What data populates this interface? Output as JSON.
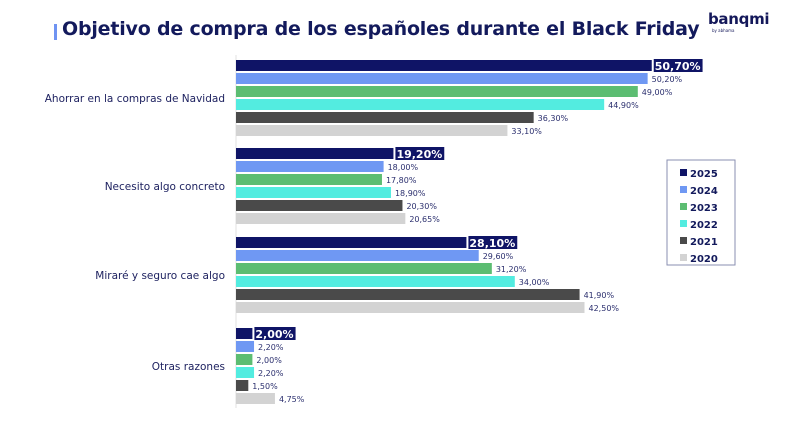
{
  "header": {
    "title": "Objetivo de compra de los españoles durante el Black Friday",
    "logo": "banqmi",
    "logo_sub": "by abhama"
  },
  "chart_data": {
    "type": "bar",
    "orientation": "horizontal",
    "title": "Objetivo de compra de los españoles durante el Black Friday",
    "xlabel": "",
    "ylabel": "",
    "xlim": [
      0,
      55
    ],
    "grid": false,
    "legend_position": "right",
    "categories": [
      "Ahorrar en la compras de Navidad",
      "Necesito algo concreto",
      "Miraré y seguro cae algo",
      "Otras razones"
    ],
    "series": [
      {
        "name": "2025",
        "color": "#0f1466",
        "values": [
          50.7,
          19.2,
          28.1,
          2.0
        ],
        "labels": [
          "50,70%",
          "19,20%",
          "28,10%",
          "2,00%"
        ],
        "highlight": true
      },
      {
        "name": "2024",
        "color": "#6f98f3",
        "values": [
          50.2,
          18.0,
          29.6,
          2.2
        ],
        "labels": [
          "50,20%",
          "18,00%",
          "29,60%",
          "2,20%"
        ]
      },
      {
        "name": "2023",
        "color": "#5cbd72",
        "values": [
          49.0,
          17.8,
          31.2,
          2.0
        ],
        "labels": [
          "49,00%",
          "17,80%",
          "31,20%",
          "2,00%"
        ]
      },
      {
        "name": "2022",
        "color": "#53ece0",
        "values": [
          44.9,
          18.9,
          34.0,
          2.2
        ],
        "labels": [
          "44,90%",
          "18,90%",
          "34,00%",
          "2,20%"
        ]
      },
      {
        "name": "2021",
        "color": "#4a4a4a",
        "values": [
          36.3,
          20.3,
          41.9,
          1.5
        ],
        "labels": [
          "36,30%",
          "20,30%",
          "41,90%",
          "1,50%"
        ]
      },
      {
        "name": "2020",
        "color": "#d3d3d3",
        "values": [
          33.1,
          20.65,
          42.5,
          4.75
        ],
        "labels": [
          "33,10%",
          "20,65%",
          "42,50%",
          "4,75%"
        ]
      }
    ]
  }
}
